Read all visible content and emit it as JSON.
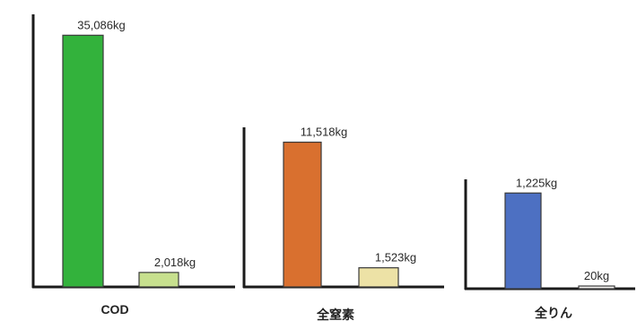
{
  "chart_data": [
    {
      "type": "bar",
      "title": "COD",
      "categories": [
        "",
        ""
      ],
      "values": [
        35086,
        2018
      ],
      "value_labels": [
        "35,086kg",
        "2,018kg"
      ],
      "colors": [
        "#33b23c",
        "#c7e08e"
      ],
      "unit": "kg",
      "ylim": [
        0,
        38000
      ],
      "grid": false
    },
    {
      "type": "bar",
      "title": "全窒素",
      "categories": [
        "",
        ""
      ],
      "values": [
        11518,
        1523
      ],
      "value_labels": [
        "11,518kg",
        "1,523kg"
      ],
      "colors": [
        "#d9702f",
        "#ede2a6"
      ],
      "unit": "kg",
      "ylim": [
        0,
        12700
      ],
      "grid": false
    },
    {
      "type": "bar",
      "title": "全りん",
      "categories": [
        "",
        ""
      ],
      "values": [
        1225,
        20
      ],
      "value_labels": [
        "1,225kg",
        "20kg"
      ],
      "colors": [
        "#4d70c2",
        "#f2f1ee"
      ],
      "unit": "kg",
      "ylim": [
        0,
        1400
      ],
      "grid": false
    }
  ]
}
